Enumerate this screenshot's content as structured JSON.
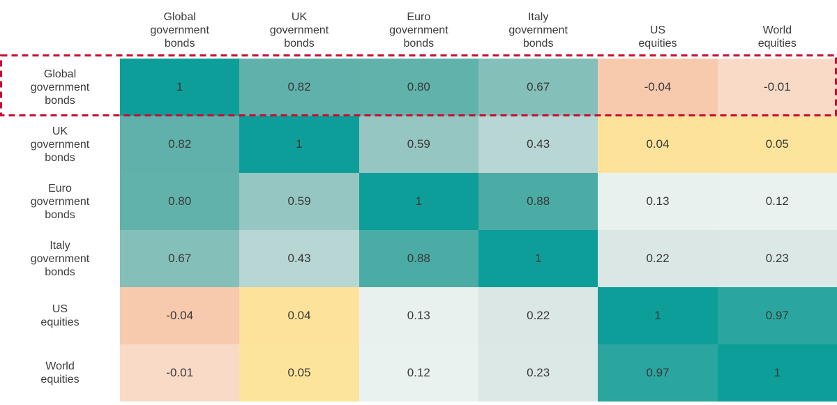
{
  "heatmap": {
    "text_color": "#3b3b3a",
    "background": "#ffffff",
    "columns": [
      {
        "id": "global-government-bonds",
        "lines": [
          "Global",
          "government",
          "bonds"
        ]
      },
      {
        "id": "uk-government-bonds",
        "lines": [
          "UK",
          "government",
          "bonds"
        ]
      },
      {
        "id": "euro-government-bonds",
        "lines": [
          "Euro",
          "government",
          "bonds"
        ]
      },
      {
        "id": "italy-government-bonds",
        "lines": [
          "Italy",
          "government",
          "bonds"
        ]
      },
      {
        "id": "us-equities",
        "lines": [
          "US",
          "equities"
        ]
      },
      {
        "id": "world-equities",
        "lines": [
          "World",
          "equities"
        ]
      }
    ],
    "rows": [
      {
        "id": "global-government-bonds",
        "lines": [
          "Global",
          "government",
          "bonds"
        ],
        "cells": [
          {
            "text": "1",
            "bg": "#0E9E99"
          },
          {
            "text": "0.82",
            "bg": "#60B1AB"
          },
          {
            "text": "0.80",
            "bg": "#62B2AC"
          },
          {
            "text": "0.67",
            "bg": "#85BFB9"
          },
          {
            "text": "-0.04",
            "bg": "#F7CAAE"
          },
          {
            "text": "-0.01",
            "bg": "#F9DAC7"
          }
        ]
      },
      {
        "id": "uk-government-bonds",
        "lines": [
          "UK",
          "government",
          "bonds"
        ],
        "cells": [
          {
            "text": "0.82",
            "bg": "#60B1AB"
          },
          {
            "text": "1",
            "bg": "#0E9E99"
          },
          {
            "text": "0.59",
            "bg": "#96C6C1"
          },
          {
            "text": "0.43",
            "bg": "#B8D6D3"
          },
          {
            "text": "0.04",
            "bg": "#FDE39A"
          },
          {
            "text": "0.05",
            "bg": "#FDE49B"
          }
        ]
      },
      {
        "id": "euro-government-bonds",
        "lines": [
          "Euro",
          "government",
          "bonds"
        ],
        "cells": [
          {
            "text": "0.80",
            "bg": "#62B2AC"
          },
          {
            "text": "0.59",
            "bg": "#96C6C1"
          },
          {
            "text": "1",
            "bg": "#0E9E99"
          },
          {
            "text": "0.88",
            "bg": "#4BABA5"
          },
          {
            "text": "0.13",
            "bg": "#E9F1EF"
          },
          {
            "text": "0.12",
            "bg": "#EAF2F0"
          }
        ]
      },
      {
        "id": "italy-government-bonds",
        "lines": [
          "Italy",
          "government",
          "bonds"
        ],
        "cells": [
          {
            "text": "0.67",
            "bg": "#85BFB9"
          },
          {
            "text": "0.43",
            "bg": "#B8D6D3"
          },
          {
            "text": "0.88",
            "bg": "#4BABA5"
          },
          {
            "text": "1",
            "bg": "#0E9E99"
          },
          {
            "text": "0.22",
            "bg": "#DAE7E5"
          },
          {
            "text": "0.23",
            "bg": "#DBE8E6"
          }
        ]
      },
      {
        "id": "us-equities",
        "lines": [
          "US",
          "equities"
        ],
        "cells": [
          {
            "text": "-0.04",
            "bg": "#F7CAAE"
          },
          {
            "text": "0.04",
            "bg": "#FDE39A"
          },
          {
            "text": "0.13",
            "bg": "#E9F1EF"
          },
          {
            "text": "0.22",
            "bg": "#DAE7E5"
          },
          {
            "text": "1",
            "bg": "#0E9E99"
          },
          {
            "text": "0.97",
            "bg": "#2BA59F"
          }
        ]
      },
      {
        "id": "world-equities",
        "lines": [
          "World",
          "equities"
        ],
        "cells": [
          {
            "text": "-0.01",
            "bg": "#F9DAC7"
          },
          {
            "text": "0.05",
            "bg": "#FDE49B"
          },
          {
            "text": "0.12",
            "bg": "#EAF2F0"
          },
          {
            "text": "0.23",
            "bg": "#DBE8E6"
          },
          {
            "text": "0.97",
            "bg": "#2BA59F"
          },
          {
            "text": "1",
            "bg": "#0E9E99"
          }
        ]
      }
    ],
    "highlight": {
      "row_index": 0,
      "row_id": "global-government-bonds",
      "color": "#C60C30"
    }
  },
  "chart_data": {
    "type": "heatmap",
    "categories": [
      "Global government bonds",
      "UK government bonds",
      "Euro government bonds",
      "Italy government bonds",
      "US equities",
      "World equities"
    ],
    "x_categories": [
      "Global government bonds",
      "UK government bonds",
      "Euro government bonds",
      "Italy government bonds",
      "US equities",
      "World equities"
    ],
    "matrix": [
      [
        1,
        0.82,
        0.8,
        0.67,
        -0.04,
        -0.01
      ],
      [
        0.82,
        1,
        0.59,
        0.43,
        0.04,
        0.05
      ],
      [
        0.8,
        0.59,
        1,
        0.88,
        0.13,
        0.12
      ],
      [
        0.67,
        0.43,
        0.88,
        1,
        0.22,
        0.23
      ],
      [
        -0.04,
        0.04,
        0.13,
        0.22,
        1,
        0.97
      ],
      [
        -0.01,
        0.05,
        0.12,
        0.23,
        0.97,
        1
      ]
    ],
    "value_range": [
      -1,
      1
    ],
    "cell_value_labels": "shown",
    "legend": "none",
    "grid": "off",
    "highlighted_row": "Global government bonds",
    "colorscale": {
      "high_positive": "#0E9E99",
      "mid_positive": "#96C6C1",
      "low_positive": "#EAF2F0",
      "near_zero_positive": "#FDE49B",
      "negative": "#F7CAAE"
    }
  }
}
